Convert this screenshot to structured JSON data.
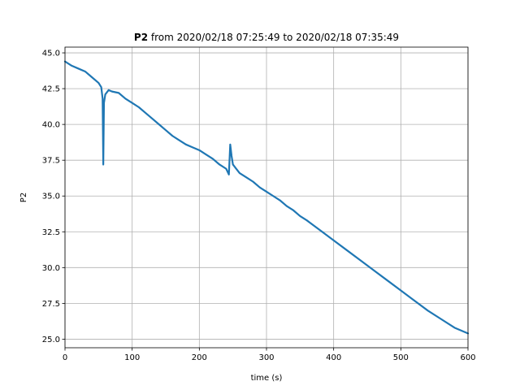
{
  "chart_data": {
    "type": "line",
    "title": {
      "bold": "P2",
      "rest": " from 2020/02/18 07:25:49 to 2020/02/18 07:35:49"
    },
    "xlabel": "time (s)",
    "ylabel": "P2",
    "xlim": [
      0,
      600
    ],
    "ylim": [
      24.4,
      45.4
    ],
    "xticks": [
      0,
      100,
      200,
      300,
      400,
      500,
      600
    ],
    "xtick_labels": [
      "0",
      "100",
      "200",
      "300",
      "400",
      "500",
      "600"
    ],
    "yticks": [
      25.0,
      27.5,
      30.0,
      32.5,
      35.0,
      37.5,
      40.0,
      42.5,
      45.0
    ],
    "ytick_labels": [
      "25.0",
      "27.5",
      "30.0",
      "32.5",
      "35.0",
      "37.5",
      "40.0",
      "42.5",
      "45.0"
    ],
    "grid": true,
    "series": [
      {
        "color": "#1f77b4",
        "x": [
          0,
          10,
          20,
          30,
          40,
          50,
          54,
          56,
          57,
          58,
          60,
          65,
          70,
          80,
          90,
          100,
          110,
          120,
          130,
          140,
          150,
          160,
          170,
          180,
          190,
          200,
          210,
          220,
          230,
          240,
          244,
          246,
          248,
          250,
          255,
          260,
          270,
          280,
          290,
          300,
          310,
          320,
          330,
          340,
          350,
          360,
          380,
          400,
          420,
          440,
          460,
          480,
          500,
          520,
          540,
          560,
          580,
          600
        ],
        "y": [
          44.4,
          44.1,
          43.9,
          43.7,
          43.3,
          42.9,
          42.6,
          41.8,
          37.2,
          41.5,
          42.1,
          42.4,
          42.3,
          42.2,
          41.8,
          41.5,
          41.2,
          40.8,
          40.4,
          40.0,
          39.6,
          39.2,
          38.9,
          38.6,
          38.4,
          38.2,
          37.9,
          37.6,
          37.2,
          36.9,
          36.5,
          38.6,
          37.8,
          37.2,
          36.9,
          36.6,
          36.3,
          36.0,
          35.6,
          35.3,
          35.0,
          34.7,
          34.3,
          34.0,
          33.6,
          33.3,
          32.6,
          31.9,
          31.2,
          30.5,
          29.8,
          29.1,
          28.4,
          27.7,
          27.0,
          26.4,
          25.8,
          25.4
        ]
      }
    ]
  }
}
